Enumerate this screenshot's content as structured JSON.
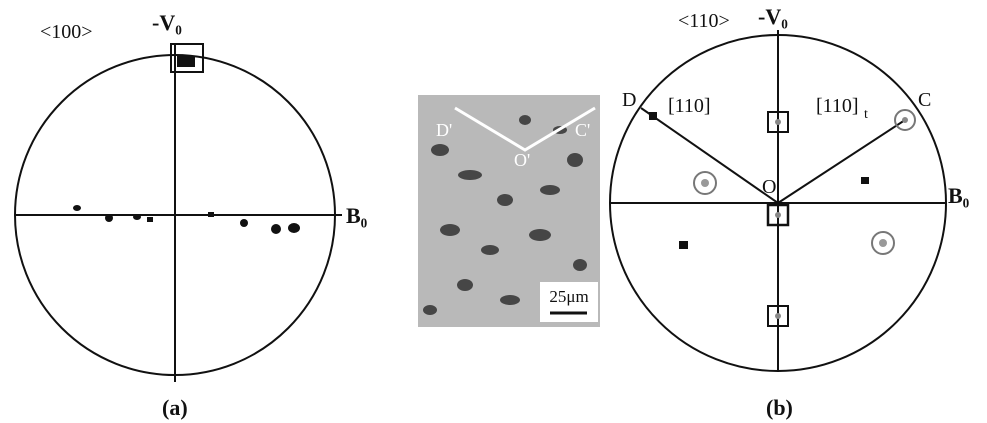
{
  "panel_a": {
    "orientation": "<100>",
    "top_axis": "-V₀",
    "right_axis": "B₀",
    "caption": "(a)"
  },
  "micrograph": {
    "labels": [
      "D'",
      "O'",
      "C'"
    ],
    "scale_bar": "25μm"
  },
  "panel_b": {
    "orientation": "<110>",
    "top_axis": "-V₀",
    "right_axis": "B₀",
    "caption": "(b)",
    "point_d": "D",
    "point_c": "C",
    "point_o": "O",
    "direction": "[110]",
    "twin_direction": "[110]",
    "twin_subscript": "t"
  }
}
